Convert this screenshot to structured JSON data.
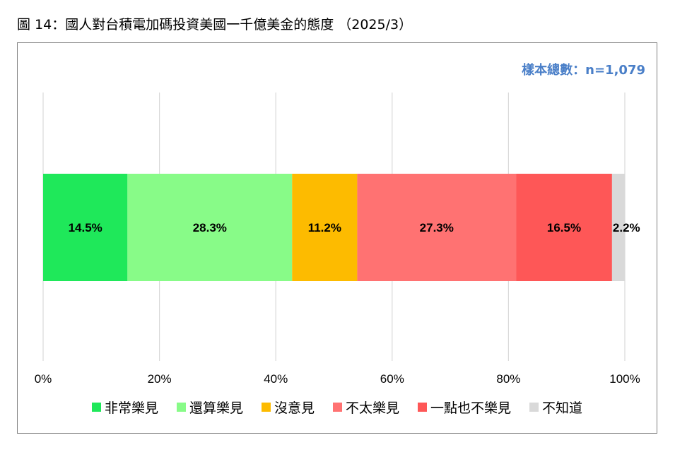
{
  "figure": {
    "title": "圖 14：國人對台積電加碼投資美國一千億美金的態度 （2025/3）",
    "sample_note": "樣本總數：n=1,079"
  },
  "chart_data": {
    "type": "bar",
    "orientation": "horizontal",
    "stacked": true,
    "title": "圖 14：國人對台積電加碼投資美國一千億美金的態度 （2025/3）",
    "xlim": [
      0,
      100
    ],
    "x_ticks": [
      "0%",
      "20%",
      "40%",
      "60%",
      "80%",
      "100%"
    ],
    "grid": true,
    "legend_position": "bottom",
    "series": [
      {
        "name": "非常樂見",
        "value": 14.5,
        "label": "14.5%",
        "color": "#1fe85a"
      },
      {
        "name": "還算樂見",
        "value": 28.3,
        "label": "28.3%",
        "color": "#88fb88"
      },
      {
        "name": "沒意見",
        "value": 11.2,
        "label": "11.2%",
        "color": "#fdbb00"
      },
      {
        "name": "不太樂見",
        "value": 27.3,
        "label": "27.3%",
        "color": "#ff7272"
      },
      {
        "name": "一點也不樂見",
        "value": 16.5,
        "label": "16.5%",
        "color": "#fe5757"
      },
      {
        "name": "不知道",
        "value": 2.2,
        "label": "2.2%",
        "color": "#d9d9d9"
      }
    ]
  }
}
